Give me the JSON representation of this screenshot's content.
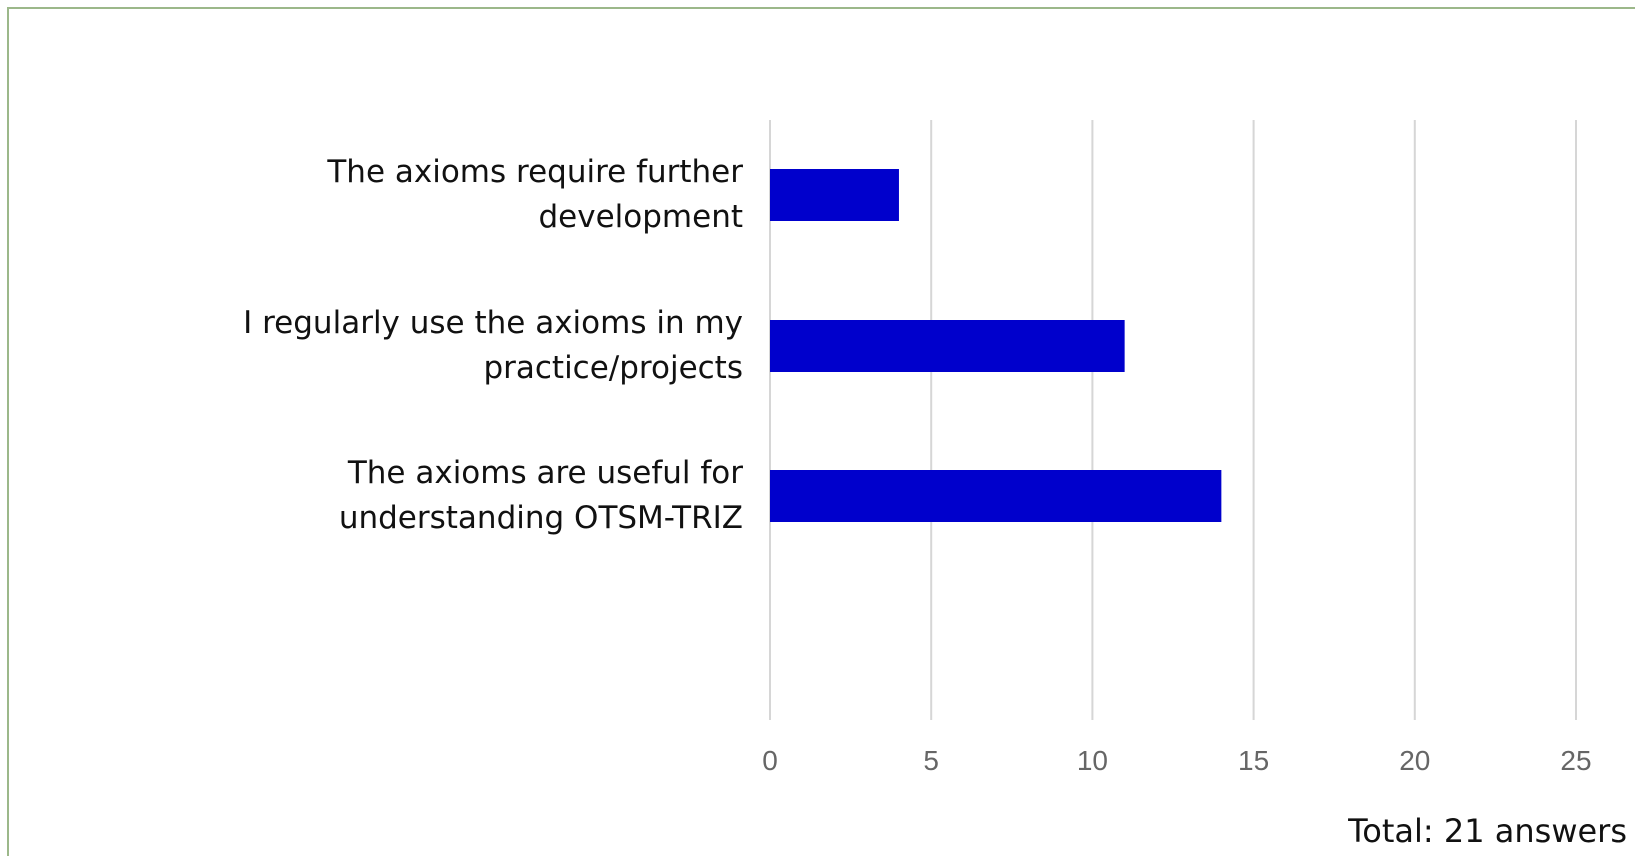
{
  "chart_data": {
    "type": "barh",
    "categories": [
      "The axioms require further development",
      "I regularly use the axioms in my practice/projects",
      "The axioms are useful for understanding OTSM-TRIZ"
    ],
    "values": [
      4,
      11,
      14
    ],
    "color": "#0000cc",
    "xlim": [
      0,
      25
    ],
    "xticks": [
      0,
      5,
      10,
      15,
      20,
      25
    ],
    "grid": true,
    "annotation": "Total: 21 answers"
  }
}
